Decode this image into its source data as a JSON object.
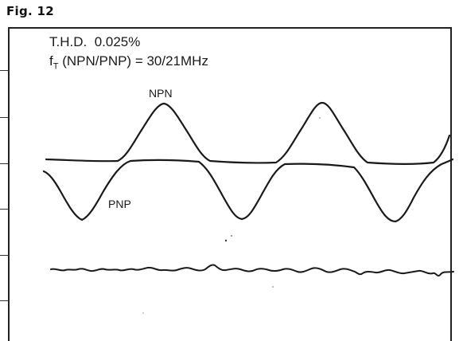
{
  "figure": {
    "label": "Fig. 12"
  },
  "scope": {
    "thd_label": "T.H.D.",
    "thd_value": "0.025%",
    "ft_symbol": "f",
    "ft_subscript": "T",
    "ft_text": "(NPN/PNP) = 30/21MHz"
  },
  "traces": {
    "npn_label": "NPN",
    "pnp_label": "PNP",
    "color": "#1a1a1a"
  }
}
